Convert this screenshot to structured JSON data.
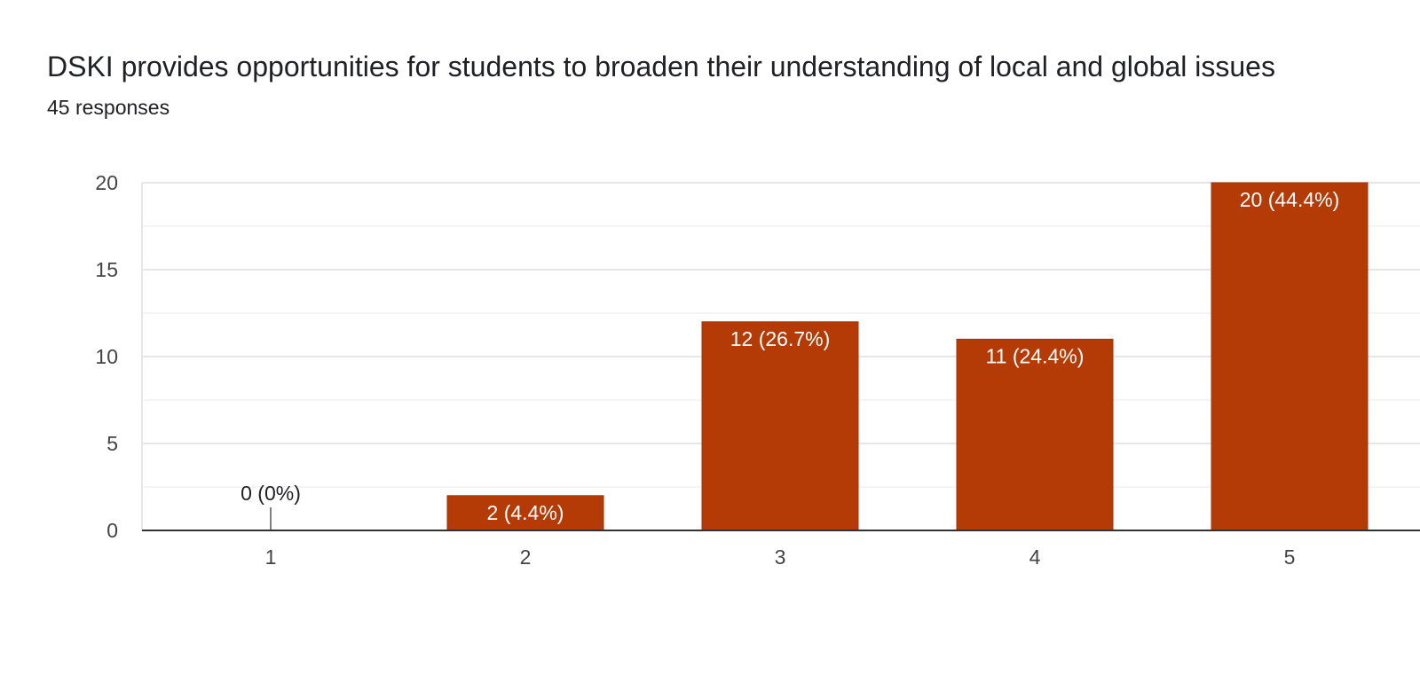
{
  "chart_data": {
    "type": "bar",
    "title": "DSKI provides opportunities for students to broaden their understanding of local and global issues",
    "subtitle": "45 responses",
    "categories": [
      "1",
      "2",
      "3",
      "4",
      "5"
    ],
    "values": [
      0,
      2,
      12,
      11,
      20
    ],
    "data_labels": [
      "0 (0%)",
      "2 (4.4%)",
      "12 (26.7%)",
      "11 (24.4%)",
      "20 (44.4%)"
    ],
    "ylim": [
      0,
      20
    ],
    "yticks": [
      0,
      5,
      10,
      15,
      20
    ],
    "xlabel": "",
    "ylabel": "",
    "grid": true,
    "legend": "none",
    "colors": {
      "bar": "#b43b06",
      "bar_edge": "#a33405",
      "grid_major": "#e6e6e6",
      "grid_minor": "#f2f2f2",
      "axis": "#333333"
    }
  }
}
